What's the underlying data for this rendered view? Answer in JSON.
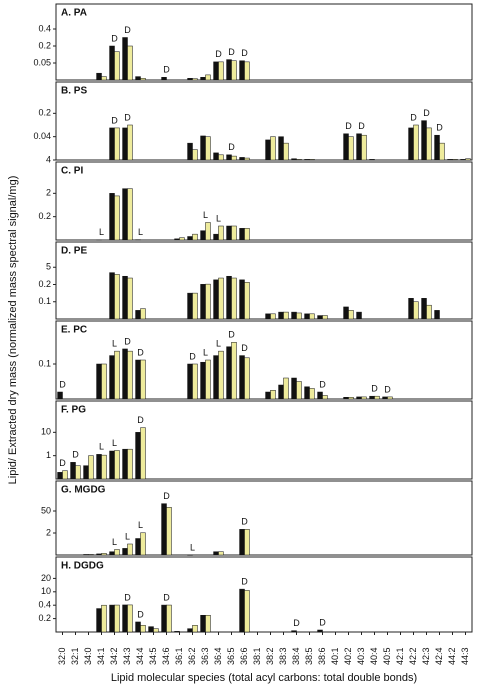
{
  "chart_data": [
    {
      "type": "bar",
      "title": "A. PA",
      "ylabel": "Lipid/ Extracted dry mass (normalized mass spectral signal/mg)",
      "ylim": [
        0,
        0.5
      ],
      "yticks": [
        0.05,
        0.2,
        0.4
      ],
      "series": [
        {
          "color": "#111111",
          "values": [
            null,
            null,
            null,
            0.02,
            0.2,
            0.3,
            0.01,
            null,
            0.008,
            null,
            0.005,
            0.008,
            0.06,
            0.08,
            0.07,
            null,
            null,
            null,
            null,
            null,
            null,
            null,
            null,
            null,
            null,
            null,
            null,
            null,
            null,
            null,
            null,
            null
          ]
        },
        {
          "color": "#eeeb9c",
          "values": [
            null,
            null,
            null,
            0.01,
            0.15,
            0.2,
            0.005,
            null,
            null,
            null,
            0.004,
            0.015,
            0.06,
            0.07,
            0.06,
            null,
            null,
            null,
            null,
            null,
            null,
            null,
            null,
            null,
            null,
            null,
            null,
            null,
            null,
            null,
            null,
            null
          ]
        }
      ],
      "markers": [
        null,
        null,
        null,
        null,
        "D",
        "D",
        null,
        null,
        "D",
        null,
        null,
        null,
        "D",
        "D",
        "D",
        null,
        null,
        null,
        null,
        null,
        null,
        null,
        null,
        null,
        null,
        null,
        null,
        null,
        null,
        null,
        null,
        null
      ]
    },
    {
      "type": "bar",
      "title": "B. PS",
      "ylim": [
        0.004,
        0.3
      ],
      "yticks": [
        {
          "value": 0.004,
          "label": "4"
        },
        0.04,
        0.2
      ],
      "series": [
        {
          "color": "#111111",
          "values": [
            null,
            null,
            null,
            null,
            0.1,
            0.1,
            null,
            null,
            null,
            null,
            0.03,
            0.045,
            0.015,
            0.012,
            0.008,
            null,
            0.035,
            0.04,
            0.006,
            0.005,
            null,
            null,
            0.06,
            0.06,
            0.005,
            null,
            null,
            0.1,
            0.15,
            0.05,
            0.005,
            0.005
          ]
        },
        {
          "color": "#eeeb9c",
          "values": [
            null,
            null,
            null,
            null,
            0.1,
            0.12,
            null,
            null,
            null,
            null,
            0.02,
            0.04,
            0.012,
            0.01,
            0.007,
            null,
            0.04,
            0.03,
            0.005,
            0.005,
            null,
            null,
            0.04,
            0.05,
            null,
            null,
            null,
            0.12,
            0.1,
            0.03,
            0.005,
            0.006
          ]
        }
      ],
      "markers": [
        null,
        null,
        null,
        null,
        "D",
        "D",
        null,
        null,
        null,
        null,
        null,
        null,
        null,
        "D",
        null,
        null,
        null,
        null,
        null,
        null,
        null,
        null,
        "D",
        "D",
        null,
        null,
        null,
        "D",
        "D",
        "D",
        null,
        null
      ]
    },
    {
      "type": "bar",
      "title": "C. PI",
      "ylim": [
        0,
        3
      ],
      "yticks": [
        0.2,
        2
      ],
      "series": [
        {
          "color": "#111111",
          "values": [
            null,
            null,
            null,
            0.002,
            2,
            2.2,
            0.003,
            null,
            null,
            0.01,
            0.03,
            0.08,
            0.05,
            0.12,
            0.1,
            null,
            null,
            null,
            null,
            null,
            null,
            null,
            null,
            null,
            null,
            null,
            null,
            null,
            null,
            null,
            null,
            null
          ]
        },
        {
          "color": "#eeeb9c",
          "values": [
            null,
            null,
            null,
            null,
            1.8,
            2.2,
            null,
            null,
            null,
            0.02,
            0.05,
            0.15,
            0.12,
            0.12,
            0.1,
            null,
            null,
            null,
            null,
            null,
            null,
            null,
            null,
            null,
            null,
            null,
            null,
            null,
            null,
            null,
            null,
            null
          ]
        }
      ],
      "markers": [
        null,
        null,
        null,
        "L",
        null,
        null,
        "L",
        null,
        null,
        null,
        null,
        "L",
        "L",
        null,
        null,
        null,
        null,
        null,
        null,
        null,
        null,
        null,
        null,
        null,
        null,
        null,
        null,
        null,
        null,
        null,
        null,
        null
      ]
    },
    {
      "type": "bar",
      "title": "D. PE",
      "ylim": [
        0,
        8
      ],
      "yticks": [
        0.1,
        0.2,
        5
      ],
      "series": [
        {
          "color": "#111111",
          "values": [
            null,
            null,
            null,
            null,
            3.5,
            2.5,
            0.05,
            null,
            null,
            null,
            0.15,
            0.25,
            1.5,
            2.5,
            1.5,
            null,
            0.03,
            0.04,
            0.04,
            0.03,
            0.02,
            null,
            0.07,
            0.04,
            null,
            null,
            null,
            0.12,
            0.12,
            0.05,
            null,
            null
          ]
        },
        {
          "color": "#eeeb9c",
          "values": [
            null,
            null,
            null,
            null,
            3,
            2,
            0.06,
            null,
            null,
            null,
            0.15,
            0.3,
            2,
            2,
            0.8,
            null,
            0.03,
            0.04,
            0.035,
            0.03,
            0.02,
            null,
            0.05,
            null,
            null,
            null,
            null,
            0.1,
            0.08,
            null,
            null,
            null
          ]
        }
      ]
    },
    {
      "type": "bar",
      "title": "E. PC",
      "ylim": [
        0,
        8
      ],
      "yticks": [
        0.1
      ],
      "series": [
        {
          "color": "#111111",
          "values": [
            0.02,
            null,
            null,
            0.1,
            2,
            3.5,
            1,
            null,
            null,
            null,
            0.1,
            0.5,
            2,
            4,
            2,
            null,
            0.02,
            0.04,
            0.06,
            0.035,
            0.02,
            null,
            0.005,
            0.006,
            0.008,
            0.006,
            null,
            null,
            null,
            null,
            null,
            null
          ]
        },
        {
          "color": "#eeeb9c",
          "values": [
            null,
            null,
            null,
            0.1,
            3,
            3,
            1,
            null,
            null,
            null,
            0.1,
            1,
            3,
            5,
            1.5,
            null,
            0.025,
            0.06,
            0.05,
            0.03,
            0.01,
            null,
            0.005,
            0.006,
            0.008,
            0.006,
            null,
            null,
            null,
            null,
            null,
            null
          ]
        }
      ],
      "markers": [
        "D",
        null,
        null,
        null,
        "L",
        "D",
        "D",
        null,
        null,
        null,
        "D",
        "L",
        "L",
        "D",
        "D",
        null,
        null,
        null,
        null,
        null,
        "D",
        null,
        null,
        null,
        "D",
        "D",
        null,
        null,
        null,
        null,
        null,
        null
      ]
    },
    {
      "type": "bar",
      "title": "F. PG",
      "ylim": [
        0.3,
        15
      ],
      "yticks": [
        1,
        10
      ],
      "series": [
        {
          "color": "#111111",
          "values": [
            0.5,
            0.8,
            0.7,
            1.5,
            2.8,
            3.5,
            10,
            null,
            null,
            null,
            null,
            null,
            null,
            null,
            null,
            null,
            null,
            null,
            null,
            null,
            null,
            null,
            null,
            null,
            null,
            null,
            null,
            null,
            null,
            null,
            null,
            null
          ]
        },
        {
          "color": "#eeeb9c",
          "values": [
            0.55,
            0.7,
            1,
            1.2,
            3,
            3.5,
            11,
            null,
            null,
            null,
            null,
            null,
            null,
            null,
            null,
            null,
            null,
            null,
            null,
            null,
            null,
            null,
            null,
            null,
            null,
            null,
            null,
            null,
            null,
            null,
            null,
            null
          ]
        }
      ],
      "markers": [
        "D",
        "D",
        null,
        "L",
        "L",
        null,
        "D",
        null,
        null,
        null,
        null,
        null,
        null,
        null,
        null,
        null,
        null,
        null,
        null,
        null,
        null,
        null,
        null,
        null,
        null,
        null,
        null,
        null,
        null,
        null,
        null,
        null
      ]
    },
    {
      "type": "bar",
      "title": "G. MGDG",
      "ylim": [
        0,
        80
      ],
      "yticks": [
        2,
        50
      ],
      "series": [
        {
          "color": "#111111",
          "values": [
            null,
            null,
            0.05,
            0.1,
            0.3,
            0.6,
            1.5,
            null,
            60,
            null,
            0.01,
            null,
            0.3,
            null,
            10,
            null,
            null,
            null,
            null,
            null,
            null,
            null,
            null,
            null,
            null,
            null,
            null,
            null,
            null,
            null,
            null,
            null
          ]
        },
        {
          "color": "#eeeb9c",
          "values": [
            null,
            null,
            0.05,
            0.15,
            0.5,
            1,
            2.5,
            null,
            55,
            null,
            null,
            null,
            0.3,
            null,
            10,
            null,
            null,
            null,
            null,
            null,
            null,
            null,
            null,
            null,
            null,
            null,
            null,
            null,
            null,
            null,
            null,
            null
          ]
        }
      ],
      "markers": [
        null,
        null,
        null,
        null,
        "L",
        "L",
        "L",
        null,
        "D",
        null,
        "L",
        null,
        null,
        null,
        "D",
        null,
        null,
        null,
        null,
        null,
        null,
        null,
        null,
        null,
        null,
        null,
        null,
        null,
        null,
        null,
        null,
        null
      ]
    },
    {
      "type": "bar",
      "title": "H. DGDG",
      "xlabel": "Lipid molecular species (total acyl carbons: total double bonds)",
      "categories": [
        "32:0",
        "32:1",
        "34:0",
        "34:1",
        "34:2",
        "34:3",
        "34:4",
        "34:5",
        "34:6",
        "36:1",
        "36:2",
        "36:3",
        "36:4",
        "36:5",
        "36:6",
        "38:1",
        "38:2",
        "38:3",
        "38:4",
        "38:5",
        "38:6",
        "40:1",
        "40:2",
        "40:3",
        "40:4",
        "40:5",
        "42:1",
        "42:2",
        "42:3",
        "42:4",
        "44:2",
        "44:3"
      ],
      "ylim": [
        0,
        22
      ],
      "yticks": [
        0.2,
        0.4,
        10,
        20
      ],
      "series": [
        {
          "color": "#111111",
          "values": [
            null,
            null,
            null,
            0.35,
            0.5,
            0.6,
            0.15,
            0.08,
            0.5,
            0.01,
            0.05,
            0.25,
            null,
            null,
            12,
            null,
            null,
            null,
            0.02,
            null,
            0.03,
            null,
            null,
            null,
            null,
            null,
            null,
            null,
            null,
            null,
            null,
            null
          ]
        },
        {
          "color": "#eeeb9c",
          "values": [
            null,
            null,
            null,
            0.4,
            0.5,
            0.6,
            0.1,
            0.05,
            0.5,
            null,
            0.1,
            0.25,
            null,
            null,
            11,
            null,
            null,
            null,
            null,
            null,
            null,
            null,
            null,
            null,
            null,
            null,
            null,
            null,
            null,
            null,
            null,
            null
          ]
        }
      ],
      "markers": [
        null,
        null,
        null,
        null,
        null,
        "D",
        "D",
        null,
        "D",
        null,
        null,
        null,
        null,
        null,
        "D",
        null,
        null,
        null,
        "D",
        null,
        "D",
        null,
        null,
        null,
        null,
        null,
        null,
        null,
        null,
        null,
        null,
        null
      ]
    }
  ]
}
